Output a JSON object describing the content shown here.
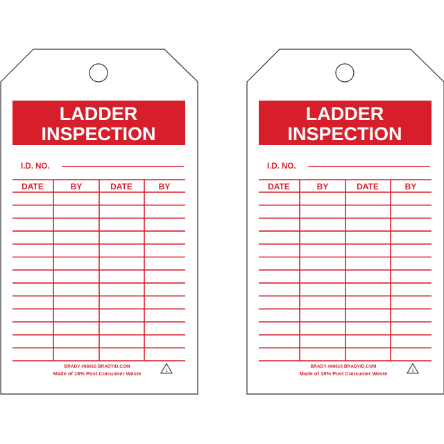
{
  "colors": {
    "brand_red": "#d71f2b",
    "outline": "#333333",
    "background": "#ffffff"
  },
  "tags": [
    {
      "title_line1": "LADDER",
      "title_line2": "INSPECTION",
      "id_label": "I.D. NO.",
      "columns": [
        "DATE",
        "BY",
        "DATE",
        "BY"
      ],
      "footer_line1": "BRADY  #86610  BRADYID.COM",
      "footer_line2": "Made of 18% Post Consumer Waste",
      "recycle_icon": "recycle-1-icon"
    },
    {
      "title_line1": "LADDER",
      "title_line2": "INSPECTION",
      "id_label": "I.D. NO.",
      "columns": [
        "DATE",
        "BY",
        "DATE",
        "BY"
      ],
      "footer_line1": "BRADY  #86610  BRADYID.COM",
      "footer_line2": "Made of 18% Post Consumer Waste",
      "recycle_icon": "recycle-1-icon"
    }
  ]
}
